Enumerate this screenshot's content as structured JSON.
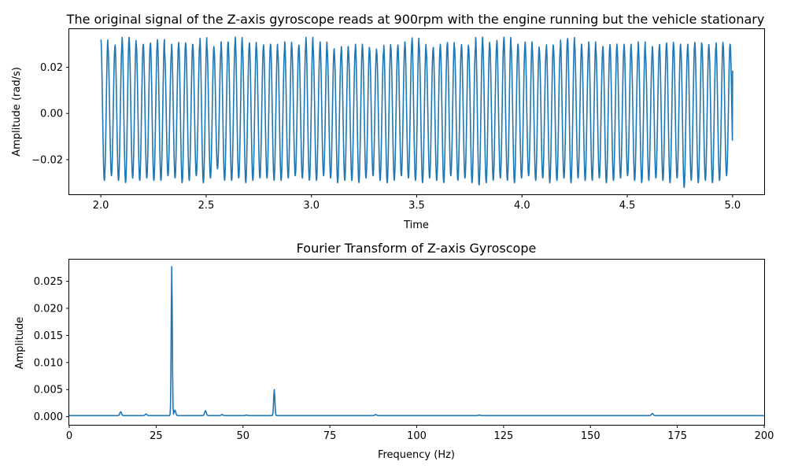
{
  "colors": {
    "series": "#1f77b4",
    "axes": "#000000",
    "background": "#ffffff"
  },
  "chart_data": [
    {
      "type": "line",
      "title": "The original signal of the Z-axis gyroscope reads at 900rpm with the engine running but the vehicle stationary",
      "xlabel": "Time",
      "ylabel": "Amplitude (rad/s)",
      "xlim": [
        1.85,
        5.15
      ],
      "ylim": [
        -0.035,
        0.0365
      ],
      "x_ticks": [
        2.0,
        2.5,
        3.0,
        3.5,
        4.0,
        4.5,
        5.0
      ],
      "x_tick_labels": [
        "2.0",
        "2.5",
        "3.0",
        "3.5",
        "4.0",
        "4.5",
        "5.0"
      ],
      "y_ticks": [
        -0.02,
        0.0,
        0.02
      ],
      "y_tick_labels": [
        "−0.02",
        "0.00",
        "0.02"
      ],
      "grid": false,
      "legend": "none",
      "series": [
        {
          "x_start": 2.0,
          "x_end": 5.0,
          "dominant_frequency_hz": 29.5,
          "peak_amplitudes": [
            0.032,
            0.029,
            0.03,
            0.033,
            0.032,
            0.03,
            0.03,
            0.031,
            0.032,
            0.027,
            0.03,
            0.031,
            0.03,
            0.03,
            0.033,
            0.029,
            0.028,
            0.031,
            0.031,
            0.033,
            0.03,
            0.031,
            0.029,
            0.03,
            0.03,
            0.028,
            0.031,
            0.029,
            0.03,
            0.033,
            0.029,
            0.031,
            0.028,
            0.027,
            0.029,
            0.028,
            0.03,
            0.029,
            0.028,
            0.027,
            0.03,
            0.029,
            0.03,
            0.031,
            0.033,
            0.03,
            0.028,
            0.029,
            0.03,
            0.031,
            0.029,
            0.03,
            0.029,
            0.033,
            0.031,
            0.03,
            0.032,
            0.033,
            0.03,
            0.03,
            0.031,
            0.029,
            0.028,
            0.03,
            0.029,
            0.032,
            0.033,
            0.03,
            0.029,
            0.031,
            0.028,
            0.029,
            0.03,
            0.029,
            0.03,
            0.028,
            0.031,
            0.027,
            0.029,
            0.03,
            0.031,
            0.03,
            0.029,
            0.03,
            0.031,
            0.03,
            0.029,
            0.031,
            0.03
          ],
          "trough_amplitudes": [
            -0.029,
            -0.027,
            -0.029,
            -0.03,
            -0.028,
            -0.029,
            -0.028,
            -0.029,
            -0.029,
            -0.027,
            -0.028,
            -0.03,
            -0.029,
            -0.027,
            -0.03,
            -0.028,
            -0.024,
            -0.029,
            -0.029,
            -0.028,
            -0.03,
            -0.029,
            -0.028,
            -0.028,
            -0.029,
            -0.029,
            -0.028,
            -0.027,
            -0.028,
            -0.029,
            -0.029,
            -0.027,
            -0.028,
            -0.03,
            -0.029,
            -0.029,
            -0.03,
            -0.028,
            -0.027,
            -0.029,
            -0.03,
            -0.029,
            -0.027,
            -0.028,
            -0.029,
            -0.03,
            -0.028,
            -0.029,
            -0.03,
            -0.027,
            -0.029,
            -0.028,
            -0.03,
            -0.031,
            -0.03,
            -0.029,
            -0.028,
            -0.029,
            -0.03,
            -0.028,
            -0.027,
            -0.029,
            -0.028,
            -0.03,
            -0.029,
            -0.028,
            -0.03,
            -0.028,
            -0.029,
            -0.029,
            -0.028,
            -0.03,
            -0.029,
            -0.028,
            -0.027,
            -0.029,
            -0.03,
            -0.029,
            -0.028,
            -0.029,
            -0.03,
            -0.028,
            -0.032,
            -0.029,
            -0.03,
            -0.029,
            -0.03,
            -0.029,
            -0.027
          ],
          "end_value": 0.0185
        }
      ]
    },
    {
      "type": "line",
      "title": "Fourier Transform of Z-axis Gyroscope",
      "xlabel": "Frequency (Hz)",
      "ylabel": "Amplitude",
      "xlim": [
        0,
        200
      ],
      "ylim": [
        -0.0015,
        0.029
      ],
      "x_ticks": [
        0,
        25,
        50,
        75,
        100,
        125,
        150,
        175,
        200
      ],
      "x_tick_labels": [
        "0",
        "25",
        "50",
        "75",
        "100",
        "125",
        "150",
        "175",
        "200"
      ],
      "y_ticks": [
        0.0,
        0.005,
        0.01,
        0.015,
        0.02,
        0.025
      ],
      "y_tick_labels": [
        "0.000",
        "0.005",
        "0.010",
        "0.015",
        "0.020",
        "0.025"
      ],
      "grid": false,
      "legend": "none",
      "series": [
        {
          "baseline": 0.0002,
          "peaks": [
            {
              "x": 14.8,
              "y": 0.0009
            },
            {
              "x": 22.1,
              "y": 0.0005
            },
            {
              "x": 29.5,
              "y": 0.0277
            },
            {
              "x": 30.4,
              "y": 0.0012
            },
            {
              "x": 39.2,
              "y": 0.0011
            },
            {
              "x": 44.0,
              "y": 0.0004
            },
            {
              "x": 51.0,
              "y": 0.0003
            },
            {
              "x": 59.0,
              "y": 0.005
            },
            {
              "x": 88.2,
              "y": 0.0004
            },
            {
              "x": 118.0,
              "y": 0.0003
            },
            {
              "x": 167.8,
              "y": 0.0006
            }
          ]
        }
      ]
    }
  ]
}
